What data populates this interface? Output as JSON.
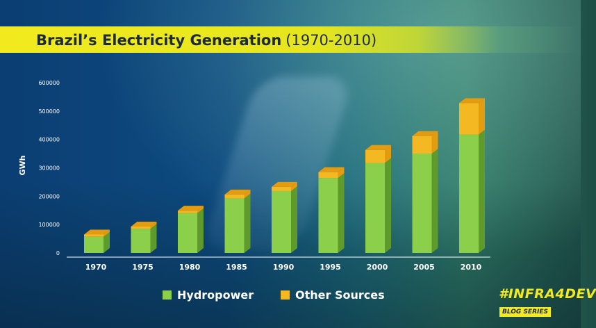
{
  "header": {
    "title": "Brazil’s Electricity Generation",
    "subtitle": "(1970-2010)"
  },
  "brand": {
    "name": "#INFRA4DEV",
    "tag": "BLOG SERIES"
  },
  "colors": {
    "hydro": "#8ccf4b",
    "hydro_side": "#5e9a2c",
    "other": "#f4b823",
    "other_top": "#e39b10",
    "axis": "#ffffff"
  },
  "chart_data": {
    "type": "bar",
    "stacked": true,
    "categories": [
      "1970",
      "1975",
      "1980",
      "1985",
      "1990",
      "1995",
      "2000",
      "2005",
      "2010"
    ],
    "series": [
      {
        "name": "Hydropower",
        "values": [
          57000,
          85000,
          140000,
          192000,
          218000,
          264000,
          317000,
          350000,
          417000
        ]
      },
      {
        "name": "Other Sources",
        "values": [
          8000,
          8000,
          9000,
          14000,
          15000,
          21000,
          46000,
          62000,
          111000
        ]
      }
    ],
    "ylabel": "GWh",
    "ylim": [
      0,
      600000
    ],
    "yticks": [
      "0",
      "100000",
      "200000",
      "300000",
      "400000",
      "500000",
      "600000"
    ],
    "grid": false,
    "legend_position": "bottom"
  }
}
